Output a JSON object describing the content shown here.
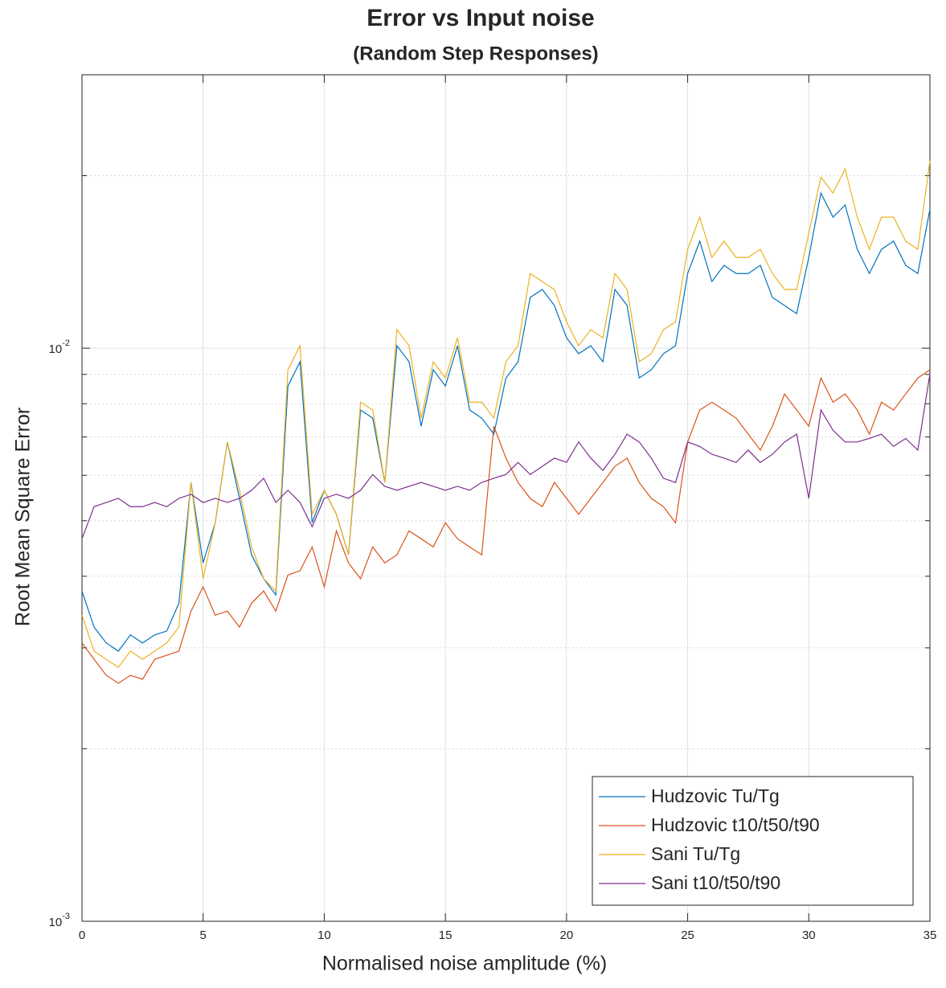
{
  "chart_data": {
    "type": "line",
    "title": "Error vs Input noise",
    "subtitle": "(Random Step Responses)",
    "x_label": "Normalised noise amplitude (%)",
    "y_label": "Root Mean Square Error",
    "log_y": true,
    "grid": true,
    "legend_position": "lower right",
    "xlim": [
      0,
      35
    ],
    "xticks": [
      0,
      5,
      10,
      15,
      20,
      25,
      30,
      35
    ],
    "ylim": [
      0.001,
      0.03
    ],
    "yticks": [
      {
        "value": 0.001,
        "label": "10^-3"
      },
      {
        "value": 0.01,
        "label": "10^-2"
      }
    ],
    "yminorticks": [
      0.002,
      0.003,
      0.004,
      0.005,
      0.006,
      0.007,
      0.008,
      0.009,
      0.02,
      0.03
    ],
    "x": [
      0,
      0.5,
      1,
      1.5,
      2,
      2.5,
      3,
      3.5,
      4,
      4.5,
      5,
      5.5,
      6,
      6.5,
      7,
      7.5,
      8,
      8.5,
      9,
      9.5,
      10,
      10.5,
      11,
      11.5,
      12,
      12.5,
      13,
      13.5,
      14,
      14.5,
      15,
      15.5,
      16,
      16.5,
      17,
      17.5,
      18,
      18.5,
      19,
      19.5,
      20,
      20.5,
      21,
      21.5,
      22,
      22.5,
      23,
      23.5,
      24,
      24.5,
      25,
      25.5,
      26,
      26.5,
      27,
      27.5,
      28,
      28.5,
      29,
      29.5,
      30,
      30.5,
      31,
      31.5,
      32,
      32.5,
      33,
      33.5,
      34,
      34.5,
      35
    ],
    "series": [
      {
        "name": "Hudzovic Tu/Tg",
        "color": "#0072BD",
        "values": [
          0.00377,
          0.00326,
          0.00306,
          0.00296,
          0.00316,
          0.00306,
          0.00316,
          0.00321,
          0.00359,
          0.00583,
          0.00422,
          0.00496,
          0.00686,
          0.00547,
          0.00436,
          0.00396,
          0.00371,
          0.00859,
          0.00947,
          0.00496,
          0.00565,
          0.00513,
          0.00436,
          0.0078,
          0.00755,
          0.00583,
          0.0101,
          0.00947,
          0.00731,
          0.00917,
          0.00859,
          0.0101,
          0.0078,
          0.00755,
          0.00708,
          0.00887,
          0.00947,
          0.01226,
          0.01266,
          0.01187,
          0.01043,
          0.00978,
          0.0101,
          0.00947,
          0.01266,
          0.01187,
          0.00887,
          0.00917,
          0.00978,
          0.0101,
          0.0135,
          0.01537,
          0.01307,
          0.01395,
          0.0135,
          0.0135,
          0.01395,
          0.01226,
          0.01187,
          0.01149,
          0.0144,
          0.01865,
          0.01693,
          0.01777,
          0.01488,
          0.0135,
          0.01488,
          0.01537,
          0.01395,
          0.0135,
          0.01748
        ]
      },
      {
        "name": "Hudzovic t10/t50/t90",
        "color": "#D95319",
        "values": [
          0.00306,
          0.002865,
          0.002687,
          0.002602,
          0.002687,
          0.002644,
          0.002865,
          0.002912,
          0.00296,
          0.003477,
          0.003833,
          0.00342,
          0.003477,
          0.00326,
          0.00359,
          0.00377,
          0.003477,
          0.00402,
          0.00409,
          0.0045,
          0.003833,
          0.0048,
          0.00422,
          0.00396,
          0.0045,
          0.00422,
          0.00436,
          0.0048,
          0.00465,
          0.0045,
          0.00496,
          0.00465,
          0.0045,
          0.00436,
          0.00731,
          0.00643,
          0.00583,
          0.00547,
          0.00529,
          0.00583,
          0.00547,
          0.00513,
          0.00547,
          0.00583,
          0.00622,
          0.00643,
          0.00583,
          0.00547,
          0.00529,
          0.00496,
          0.00686,
          0.0078,
          0.00805,
          0.0078,
          0.00755,
          0.00708,
          0.00664,
          0.00731,
          0.00832,
          0.0078,
          0.00731,
          0.00887,
          0.00805,
          0.00832,
          0.0078,
          0.00708,
          0.00805,
          0.0078,
          0.00832,
          0.00887,
          0.00917
        ]
      },
      {
        "name": "Sani Tu/Tg",
        "color": "#EDB120",
        "values": [
          0.00342,
          0.00296,
          0.002865,
          0.002774,
          0.00296,
          0.002865,
          0.00296,
          0.00306,
          0.00326,
          0.00583,
          0.00396,
          0.00496,
          0.00686,
          0.00565,
          0.0045,
          0.00396,
          0.00377,
          0.00917,
          0.0101,
          0.00513,
          0.00565,
          0.00513,
          0.00436,
          0.00805,
          0.0078,
          0.00583,
          0.01077,
          0.0101,
          0.00755,
          0.00947,
          0.00887,
          0.01043,
          0.00805,
          0.00805,
          0.00755,
          0.00947,
          0.0101,
          0.0135,
          0.01307,
          0.01266,
          0.01112,
          0.0101,
          0.01077,
          0.01043,
          0.0135,
          0.01266,
          0.00947,
          0.00978,
          0.01077,
          0.01112,
          0.01488,
          0.01693,
          0.0144,
          0.01537,
          0.0144,
          0.0144,
          0.01488,
          0.0135,
          0.01266,
          0.01266,
          0.01587,
          0.01989,
          0.01865,
          0.02055,
          0.01693,
          0.01488,
          0.01693,
          0.01693,
          0.01537,
          0.01488,
          0.02123
        ]
      },
      {
        "name": "Sani t10/t50/t90",
        "color": "#7E2F8E",
        "values": [
          0.00465,
          0.00529,
          0.00538,
          0.00547,
          0.00529,
          0.00529,
          0.00538,
          0.00529,
          0.00547,
          0.00556,
          0.00538,
          0.00547,
          0.00538,
          0.00547,
          0.00565,
          0.00593,
          0.00538,
          0.00565,
          0.00538,
          0.00488,
          0.00547,
          0.00556,
          0.00547,
          0.00565,
          0.00602,
          0.00574,
          0.00565,
          0.00574,
          0.00583,
          0.00574,
          0.00565,
          0.00574,
          0.00565,
          0.00583,
          0.00593,
          0.00602,
          0.00632,
          0.00602,
          0.00622,
          0.00643,
          0.00632,
          0.00686,
          0.00643,
          0.00612,
          0.00653,
          0.00708,
          0.00686,
          0.00643,
          0.00593,
          0.00583,
          0.00686,
          0.00674,
          0.00653,
          0.00643,
          0.00632,
          0.00664,
          0.00632,
          0.00653,
          0.00686,
          0.00708,
          0.00547,
          0.0078,
          0.00719,
          0.00686,
          0.00686,
          0.00696,
          0.00708,
          0.00674,
          0.00696,
          0.00664,
          0.00902
        ]
      }
    ]
  }
}
